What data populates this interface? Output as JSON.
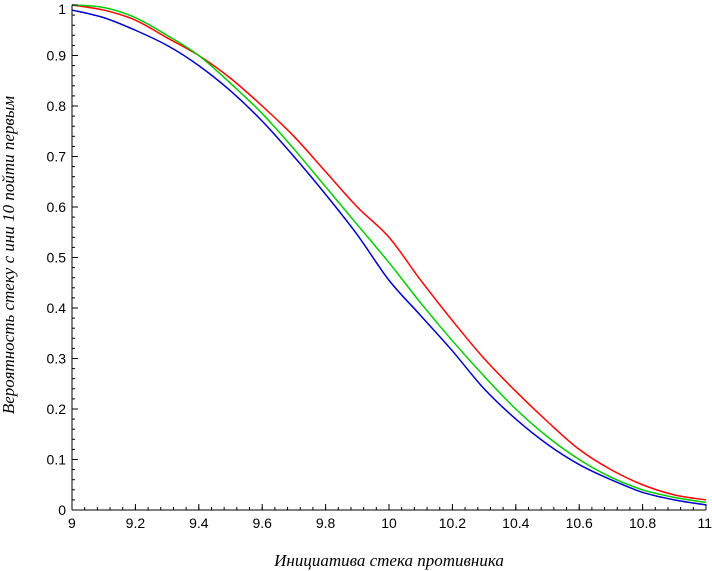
{
  "chart_data": {
    "type": "line",
    "title": "",
    "xlabel": "Инициатива стека противника",
    "ylabel": "Вероятность стеку с ини 10 пойти первым",
    "xlim": [
      9,
      11
    ],
    "ylim": [
      0,
      1
    ],
    "x_ticks": [
      "9",
      "9.2",
      "9.4",
      "9.6",
      "9.8",
      "10",
      "10.2",
      "10.4",
      "10.6",
      "10.8",
      "11"
    ],
    "y_ticks": [
      "0",
      "0.1",
      "0.2",
      "0.3",
      "0.4",
      "0.5",
      "0.6",
      "0.7",
      "0.8",
      "0.9",
      "1"
    ],
    "grid": false,
    "series": [
      {
        "color": "#ff0000",
        "x": [
          9.0,
          9.1,
          9.2,
          9.3,
          9.4,
          9.5,
          9.6,
          9.7,
          9.8,
          9.9,
          10.0,
          10.1,
          10.2,
          10.3,
          10.4,
          10.5,
          10.6,
          10.7,
          10.8,
          10.9,
          11.0
        ],
        "y": [
          1.0,
          0.99,
          0.97,
          0.935,
          0.9,
          0.855,
          0.8,
          0.74,
          0.67,
          0.6,
          0.54,
          0.455,
          0.375,
          0.3,
          0.235,
          0.175,
          0.12,
          0.08,
          0.05,
          0.03,
          0.02
        ]
      },
      {
        "color": "#00cc00",
        "x": [
          9.0,
          9.1,
          9.2,
          9.3,
          9.4,
          9.5,
          9.6,
          9.7,
          9.8,
          9.9,
          10.0,
          10.1,
          10.2,
          10.3,
          10.4,
          10.5,
          10.6,
          10.7,
          10.8,
          10.9,
          11.0
        ],
        "y": [
          1.0,
          0.995,
          0.975,
          0.94,
          0.9,
          0.845,
          0.785,
          0.715,
          0.64,
          0.565,
          0.49,
          0.41,
          0.335,
          0.265,
          0.2,
          0.145,
          0.1,
          0.065,
          0.04,
          0.025,
          0.015
        ]
      },
      {
        "color": "#0000cc",
        "x": [
          9.0,
          9.1,
          9.2,
          9.3,
          9.4,
          9.5,
          9.6,
          9.7,
          9.8,
          9.9,
          10.0,
          10.1,
          10.2,
          10.3,
          10.4,
          10.5,
          10.6,
          10.7,
          10.8,
          10.9,
          11.0
        ],
        "y": [
          0.99,
          0.975,
          0.95,
          0.92,
          0.88,
          0.83,
          0.77,
          0.7,
          0.625,
          0.545,
          0.455,
          0.385,
          0.315,
          0.24,
          0.18,
          0.13,
          0.09,
          0.06,
          0.035,
          0.02,
          0.01
        ]
      }
    ]
  }
}
